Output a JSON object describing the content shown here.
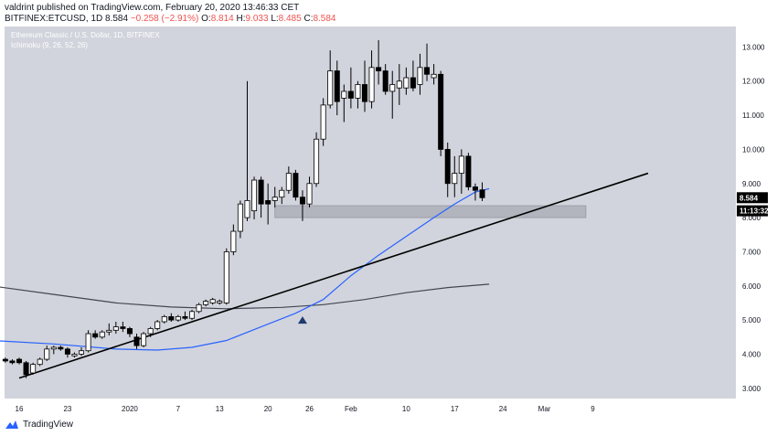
{
  "header": {
    "line1": "valdrint published on TradingView.com, February 20, 2020 13:46:33 CET",
    "symbol": "BITFINEX:ETCUSD, 1D",
    "last": "8.584",
    "change": "−0.258 (−2.91%)",
    "open_label": "O:",
    "open": "8.814",
    "high_label": "H:",
    "high": "9.033",
    "low_label": "L:",
    "low": "8.485",
    "close_label": "C:",
    "close": "8.584"
  },
  "legend": {
    "title": "Ethereum Classic / U.S. Dollar, 1D, BITFINEX",
    "indicator": "Ichimoku (9, 26, 52, 26)"
  },
  "footer": {
    "brand": "TradingView"
  },
  "colors": {
    "plot_bg": "#d1d4dc",
    "bull": "#ffffff",
    "bear": "#000000",
    "ma50": "#2962ff",
    "ma200": "#434651",
    "trendline": "#000000",
    "zone": "#b2b5be",
    "marker": "#1e3a6e"
  },
  "chart_data": {
    "type": "candlestick",
    "title": "Ethereum Classic / U.S. Dollar, 1D, BITFINEX",
    "ylim": [
      2.7,
      13.6
    ],
    "y_ticks": [
      "13.000",
      "12.000",
      "11.000",
      "10.000",
      "9.000",
      "8.000",
      "7.000",
      "6.000",
      "5.000",
      "4.000",
      "3.000"
    ],
    "x_ticks": [
      {
        "day": 0,
        "label": "16"
      },
      {
        "day": 7,
        "label": "23"
      },
      {
        "day": 16,
        "label": "2020"
      },
      {
        "day": 23,
        "label": "7"
      },
      {
        "day": 29,
        "label": "13"
      },
      {
        "day": 36,
        "label": "20"
      },
      {
        "day": 42,
        "label": "26"
      },
      {
        "day": 48,
        "label": "Feb"
      },
      {
        "day": 56,
        "label": "10"
      },
      {
        "day": 63,
        "label": "17"
      },
      {
        "day": 70,
        "label": "24"
      },
      {
        "day": 76,
        "label": "Mar"
      },
      {
        "day": 83,
        "label": "9"
      }
    ],
    "candles": [
      {
        "d": -2,
        "o": 3.85,
        "h": 3.9,
        "l": 3.75,
        "c": 3.8
      },
      {
        "d": -1,
        "o": 3.8,
        "h": 3.85,
        "l": 3.7,
        "c": 3.75
      },
      {
        "d": 0,
        "o": 3.85,
        "h": 3.9,
        "l": 3.7,
        "c": 3.75
      },
      {
        "d": 1,
        "o": 3.75,
        "h": 3.8,
        "l": 3.3,
        "c": 3.4
      },
      {
        "d": 2,
        "o": 3.45,
        "h": 3.75,
        "l": 3.4,
        "c": 3.7
      },
      {
        "d": 3,
        "o": 3.7,
        "h": 3.9,
        "l": 3.65,
        "c": 3.85
      },
      {
        "d": 4,
        "o": 3.85,
        "h": 4.25,
        "l": 3.8,
        "c": 4.15
      },
      {
        "d": 5,
        "o": 4.15,
        "h": 4.25,
        "l": 4.0,
        "c": 4.2
      },
      {
        "d": 6,
        "o": 4.2,
        "h": 4.25,
        "l": 4.1,
        "c": 4.15
      },
      {
        "d": 7,
        "o": 4.15,
        "h": 4.2,
        "l": 3.9,
        "c": 4.0
      },
      {
        "d": 8,
        "o": 3.95,
        "h": 4.05,
        "l": 3.9,
        "c": 4.0
      },
      {
        "d": 9,
        "o": 4.0,
        "h": 4.2,
        "l": 3.95,
        "c": 4.1
      },
      {
        "d": 10,
        "o": 4.1,
        "h": 4.7,
        "l": 4.05,
        "c": 4.6
      },
      {
        "d": 11,
        "o": 4.6,
        "h": 4.7,
        "l": 4.45,
        "c": 4.5
      },
      {
        "d": 12,
        "o": 4.5,
        "h": 4.7,
        "l": 4.45,
        "c": 4.65
      },
      {
        "d": 13,
        "o": 4.65,
        "h": 4.9,
        "l": 4.55,
        "c": 4.7
      },
      {
        "d": 14,
        "o": 4.7,
        "h": 4.95,
        "l": 4.6,
        "c": 4.8
      },
      {
        "d": 15,
        "o": 4.8,
        "h": 4.95,
        "l": 4.65,
        "c": 4.75
      },
      {
        "d": 16,
        "o": 4.75,
        "h": 4.8,
        "l": 4.5,
        "c": 4.6
      },
      {
        "d": 17,
        "o": 4.5,
        "h": 4.6,
        "l": 4.15,
        "c": 4.25
      },
      {
        "d": 18,
        "o": 4.25,
        "h": 4.65,
        "l": 4.2,
        "c": 4.6
      },
      {
        "d": 19,
        "o": 4.6,
        "h": 4.8,
        "l": 4.5,
        "c": 4.75
      },
      {
        "d": 20,
        "o": 4.75,
        "h": 5.0,
        "l": 4.7,
        "c": 4.95
      },
      {
        "d": 21,
        "o": 4.95,
        "h": 5.15,
        "l": 4.9,
        "c": 5.1
      },
      {
        "d": 22,
        "o": 5.1,
        "h": 5.2,
        "l": 4.95,
        "c": 5.0
      },
      {
        "d": 23,
        "o": 5.0,
        "h": 5.15,
        "l": 4.95,
        "c": 5.1
      },
      {
        "d": 24,
        "o": 5.1,
        "h": 5.25,
        "l": 5.0,
        "c": 5.05
      },
      {
        "d": 25,
        "o": 5.05,
        "h": 5.3,
        "l": 5.0,
        "c": 5.25
      },
      {
        "d": 26,
        "o": 5.25,
        "h": 5.5,
        "l": 5.2,
        "c": 5.45
      },
      {
        "d": 27,
        "o": 5.45,
        "h": 5.6,
        "l": 5.4,
        "c": 5.55
      },
      {
        "d": 28,
        "o": 5.5,
        "h": 5.65,
        "l": 5.45,
        "c": 5.6
      },
      {
        "d": 29,
        "o": 5.5,
        "h": 5.6,
        "l": 5.45,
        "c": 5.55
      },
      {
        "d": 30,
        "o": 5.5,
        "h": 7.1,
        "l": 5.45,
        "c": 7.0
      },
      {
        "d": 31,
        "o": 7.0,
        "h": 7.8,
        "l": 6.9,
        "c": 7.6
      },
      {
        "d": 32,
        "o": 7.6,
        "h": 8.5,
        "l": 7.4,
        "c": 8.4
      },
      {
        "d": 33,
        "o": 8.0,
        "h": 12.0,
        "l": 7.9,
        "c": 8.5
      },
      {
        "d": 34,
        "o": 8.2,
        "h": 9.2,
        "l": 7.95,
        "c": 9.1
      },
      {
        "d": 35,
        "o": 9.1,
        "h": 9.2,
        "l": 8.0,
        "c": 8.4
      },
      {
        "d": 36,
        "o": 8.5,
        "h": 9.0,
        "l": 7.8,
        "c": 8.4
      },
      {
        "d": 37,
        "o": 8.5,
        "h": 8.9,
        "l": 8.3,
        "c": 8.6
      },
      {
        "d": 38,
        "o": 8.6,
        "h": 8.9,
        "l": 8.4,
        "c": 8.8
      },
      {
        "d": 39,
        "o": 8.8,
        "h": 9.5,
        "l": 8.7,
        "c": 9.3
      },
      {
        "d": 40,
        "o": 9.3,
        "h": 9.4,
        "l": 8.5,
        "c": 8.6
      },
      {
        "d": 41,
        "o": 8.6,
        "h": 8.8,
        "l": 7.9,
        "c": 8.4
      },
      {
        "d": 42,
        "o": 8.4,
        "h": 9.2,
        "l": 8.3,
        "c": 9.0
      },
      {
        "d": 43,
        "o": 9.0,
        "h": 10.5,
        "l": 8.9,
        "c": 10.3
      },
      {
        "d": 44,
        "o": 10.3,
        "h": 11.5,
        "l": 10.1,
        "c": 11.3
      },
      {
        "d": 45,
        "o": 11.3,
        "h": 12.9,
        "l": 11.2,
        "c": 12.3
      },
      {
        "d": 46,
        "o": 12.3,
        "h": 12.6,
        "l": 11.0,
        "c": 11.4
      },
      {
        "d": 47,
        "o": 11.5,
        "h": 11.9,
        "l": 10.8,
        "c": 11.7
      },
      {
        "d": 48,
        "o": 11.7,
        "h": 12.4,
        "l": 11.2,
        "c": 11.5
      },
      {
        "d": 49,
        "o": 11.5,
        "h": 12.0,
        "l": 11.2,
        "c": 11.9
      },
      {
        "d": 50,
        "o": 11.9,
        "h": 12.6,
        "l": 11.1,
        "c": 11.4
      },
      {
        "d": 51,
        "o": 11.4,
        "h": 12.9,
        "l": 11.2,
        "c": 12.4
      },
      {
        "d": 52,
        "o": 12.4,
        "h": 13.2,
        "l": 11.9,
        "c": 12.3
      },
      {
        "d": 53,
        "o": 12.3,
        "h": 12.5,
        "l": 11.6,
        "c": 11.7
      },
      {
        "d": 54,
        "o": 11.7,
        "h": 12.3,
        "l": 10.9,
        "c": 11.9
      },
      {
        "d": 55,
        "o": 11.8,
        "h": 12.5,
        "l": 11.3,
        "c": 12.0
      },
      {
        "d": 56,
        "o": 11.8,
        "h": 12.4,
        "l": 11.6,
        "c": 12.1
      },
      {
        "d": 57,
        "o": 12.1,
        "h": 12.6,
        "l": 11.7,
        "c": 11.8
      },
      {
        "d": 58,
        "o": 11.9,
        "h": 12.8,
        "l": 11.6,
        "c": 12.4
      },
      {
        "d": 59,
        "o": 12.4,
        "h": 13.1,
        "l": 12.0,
        "c": 12.2
      },
      {
        "d": 60,
        "o": 12.1,
        "h": 12.5,
        "l": 11.9,
        "c": 12.2
      },
      {
        "d": 61,
        "o": 12.2,
        "h": 12.3,
        "l": 9.8,
        "c": 10.0
      },
      {
        "d": 62,
        "o": 10.0,
        "h": 10.2,
        "l": 8.6,
        "c": 9.0
      },
      {
        "d": 63,
        "o": 9.0,
        "h": 9.8,
        "l": 8.6,
        "c": 9.3
      },
      {
        "d": 64,
        "o": 9.3,
        "h": 10.0,
        "l": 8.7,
        "c": 9.8
      },
      {
        "d": 65,
        "o": 9.8,
        "h": 9.9,
        "l": 8.8,
        "c": 8.9
      },
      {
        "d": 66,
        "o": 8.9,
        "h": 9.0,
        "l": 8.5,
        "c": 8.8
      },
      {
        "d": 67,
        "o": 8.814,
        "h": 9.033,
        "l": 8.485,
        "c": 8.584
      }
    ],
    "ma50": [
      {
        "d": -4,
        "v": 4.4
      },
      {
        "d": 5,
        "v": 4.3
      },
      {
        "d": 14,
        "v": 4.15
      },
      {
        "d": 20,
        "v": 4.12
      },
      {
        "d": 25,
        "v": 4.2
      },
      {
        "d": 30,
        "v": 4.4
      },
      {
        "d": 35,
        "v": 4.8
      },
      {
        "d": 40,
        "v": 5.2
      },
      {
        "d": 44,
        "v": 5.6
      },
      {
        "d": 48,
        "v": 6.3
      },
      {
        "d": 52,
        "v": 6.9
      },
      {
        "d": 56,
        "v": 7.45
      },
      {
        "d": 60,
        "v": 8.0
      },
      {
        "d": 63,
        "v": 8.4
      },
      {
        "d": 66,
        "v": 8.75
      },
      {
        "d": 68,
        "v": 8.85
      }
    ],
    "ma200": [
      {
        "d": -4,
        "v": 6.0
      },
      {
        "d": 5,
        "v": 5.75
      },
      {
        "d": 14,
        "v": 5.5
      },
      {
        "d": 22,
        "v": 5.38
      },
      {
        "d": 30,
        "v": 5.33
      },
      {
        "d": 38,
        "v": 5.37
      },
      {
        "d": 44,
        "v": 5.45
      },
      {
        "d": 50,
        "v": 5.6
      },
      {
        "d": 56,
        "v": 5.8
      },
      {
        "d": 62,
        "v": 5.95
      },
      {
        "d": 68,
        "v": 6.05
      }
    ],
    "trendline": {
      "from": {
        "d": 0,
        "v": 3.3
      },
      "to": {
        "d": 91,
        "v": 9.3
      }
    },
    "support_zone": {
      "from_day": 37,
      "to_day": 82,
      "low": 8.0,
      "high": 8.35
    },
    "marker": {
      "day": 41,
      "value": 5.0
    },
    "price_labels": [
      {
        "value": 8.584,
        "text": "8.584"
      },
      {
        "value": 8.2,
        "text": "11:13:32"
      }
    ]
  }
}
